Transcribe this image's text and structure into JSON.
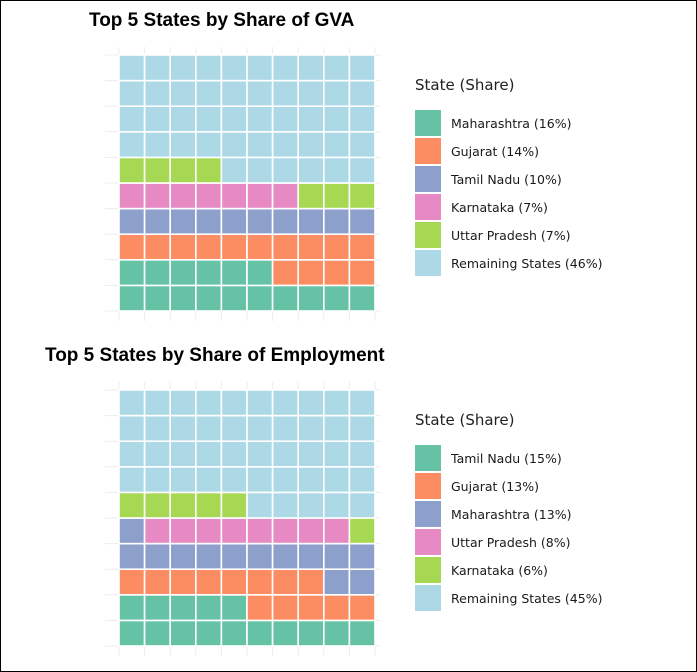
{
  "chart_data": [
    {
      "type": "waffle",
      "title": "Top 5 States by Share of GVA",
      "legend_title": "State (Share)",
      "legend_position": "right",
      "grid": true,
      "categories": [
        {
          "name": "Maharashtra",
          "share": 16,
          "color": "#66c2a5",
          "label": "Maharashtra (16%)"
        },
        {
          "name": "Gujarat",
          "share": 14,
          "color": "#fc8d62",
          "label": "Gujarat (14%)"
        },
        {
          "name": "Tamil Nadu",
          "share": 10,
          "color": "#8da0cb",
          "label": "Tamil Nadu (10%)"
        },
        {
          "name": "Karnataka",
          "share": 7,
          "color": "#e78ac3",
          "label": "Karnataka (7%)"
        },
        {
          "name": "Uttar Pradesh",
          "share": 7,
          "color": "#a6d854",
          "label": "Uttar Pradesh (7%)"
        },
        {
          "name": "Remaining States",
          "share": 46,
          "color": "#add8e6",
          "label": "Remaining States (46%)"
        }
      ]
    },
    {
      "type": "waffle",
      "title": "Top 5 States by Share of Employment",
      "legend_title": "State (Share)",
      "legend_position": "right",
      "grid": true,
      "categories": [
        {
          "name": "Tamil Nadu",
          "share": 15,
          "color": "#66c2a5",
          "label": "Tamil Nadu (15%)"
        },
        {
          "name": "Gujarat",
          "share": 13,
          "color": "#fc8d62",
          "label": "Gujarat (13%)"
        },
        {
          "name": "Maharashtra",
          "share": 13,
          "color": "#8da0cb",
          "label": "Maharashtra (13%)"
        },
        {
          "name": "Uttar Pradesh",
          "share": 8,
          "color": "#e78ac3",
          "label": "Uttar Pradesh (8%)"
        },
        {
          "name": "Karnataka",
          "share": 6,
          "color": "#a6d854",
          "label": "Karnataka (6%)"
        },
        {
          "name": "Remaining States",
          "share": 45,
          "color": "#add8e6",
          "label": "Remaining States (45%)"
        }
      ]
    }
  ]
}
